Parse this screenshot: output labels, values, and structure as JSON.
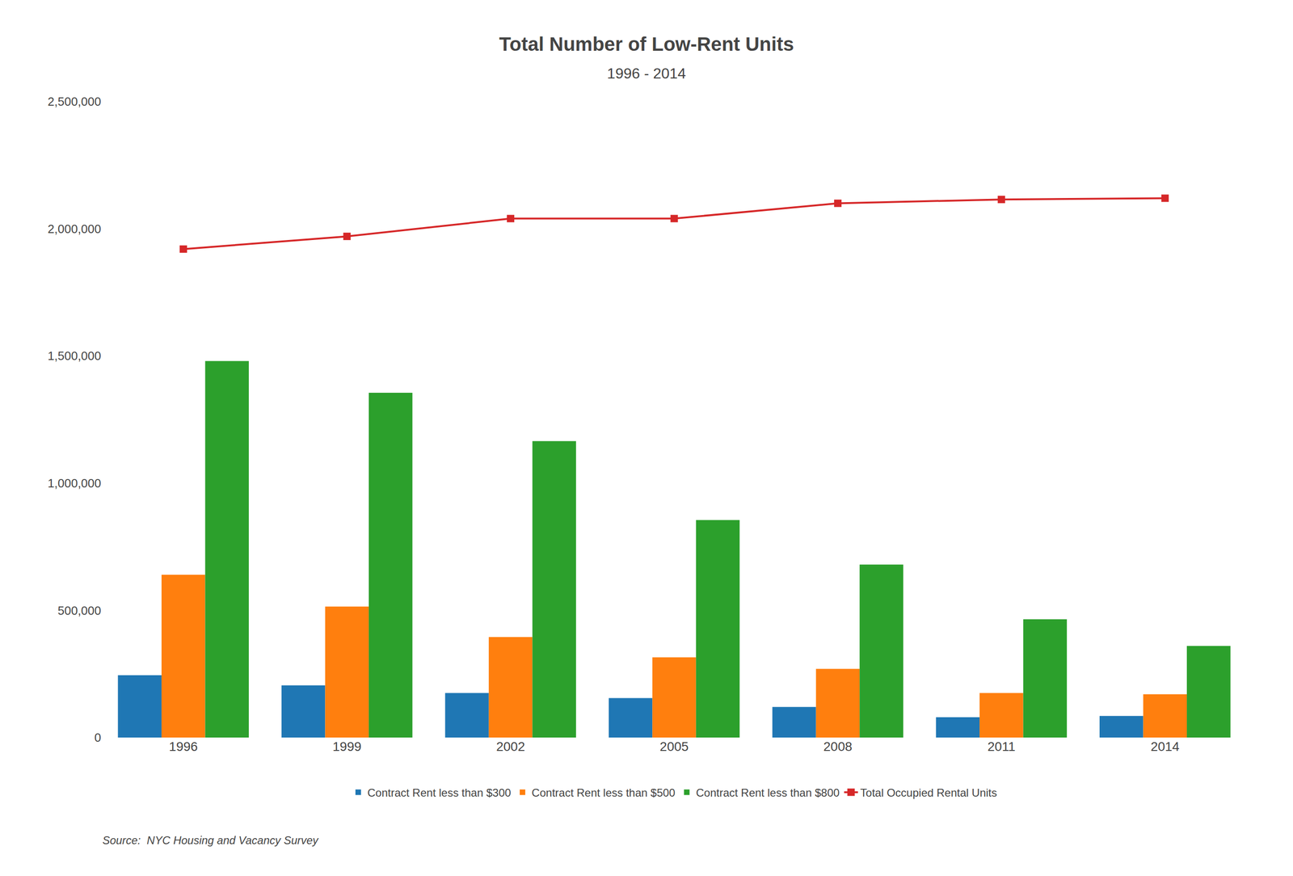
{
  "chart_data": {
    "type": "bar",
    "title": "Total Number of Low-Rent Units",
    "subtitle": "1996 - 2014",
    "source": "Source:  NYC Housing and Vacancy Survey",
    "categories": [
      "1996",
      "1999",
      "2002",
      "2005",
      "2008",
      "2011",
      "2014"
    ],
    "series": [
      {
        "name": "Contract Rent less than $300",
        "type": "bar",
        "values": [
          245000,
          205000,
          175000,
          155000,
          120000,
          80000,
          85000
        ]
      },
      {
        "name": "Contract Rent less than $500",
        "type": "bar",
        "values": [
          640000,
          515000,
          395000,
          315000,
          270000,
          175000,
          170000
        ]
      },
      {
        "name": "Contract Rent less than $800",
        "type": "bar",
        "values": [
          1480000,
          1355000,
          1165000,
          855000,
          680000,
          465000,
          360000
        ]
      },
      {
        "name": "Total Occupied Rental Units",
        "type": "line",
        "marker": "square",
        "values": [
          1920000,
          1970000,
          2040000,
          2040000,
          2100000,
          2115000,
          2120000
        ]
      }
    ],
    "ylim": [
      0,
      2500000
    ],
    "yticks": [
      0,
      {
        "value": 500000,
        "label": "500,000"
      },
      {
        "value": 1000000,
        "label": "1,000,000"
      },
      {
        "value": 1500000,
        "label": "1,500,000"
      },
      {
        "value": 2000000,
        "label": "2,000,000"
      },
      {
        "value": 2500000,
        "label": "2,500,000"
      }
    ],
    "grid": false,
    "legend": "bottom"
  }
}
